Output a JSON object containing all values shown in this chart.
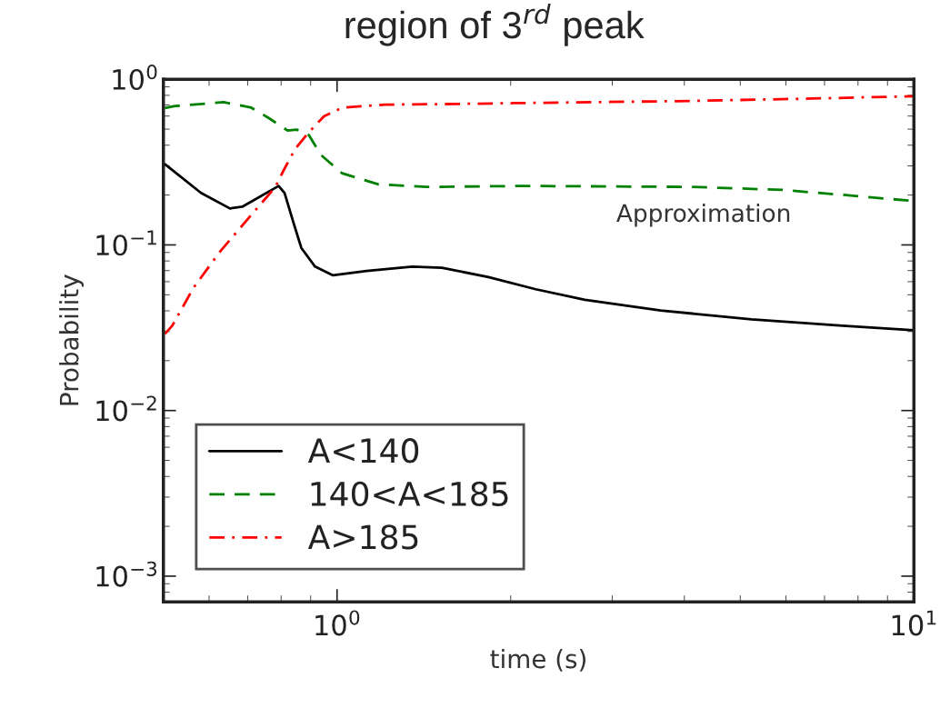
{
  "chart_data": {
    "type": "line",
    "title": "region of 3$^{rd}$ peak",
    "xlabel": "time (s)",
    "ylabel": "Probability",
    "log": "xy",
    "xlim": [
      0.5,
      10
    ],
    "ylim": [
      0.0007,
      1
    ],
    "xticks": [
      {
        "value": 1,
        "label": "10$^{0}$"
      },
      {
        "value": 10,
        "label": "10$^{1}$"
      }
    ],
    "yticks": [
      {
        "value": 0.001,
        "label": "10$^{−3}$"
      },
      {
        "value": 0.01,
        "label": "10$^{−2}$"
      },
      {
        "value": 0.1,
        "label": "10$^{−1}$"
      },
      {
        "value": 1,
        "label": "10$^{0}$"
      }
    ],
    "grid": false,
    "legend": "bottom left",
    "annotations": [
      "Approximation"
    ],
    "series": [
      {
        "name": "A<140",
        "color": "#000000",
        "line_style": "solid",
        "x": [
          0.503,
          0.581,
          0.652,
          0.685,
          0.792,
          0.811,
          0.841,
          0.867,
          0.916,
          0.984,
          1.125,
          1.35,
          1.52,
          1.83,
          2.21,
          2.69,
          3.64,
          5.23,
          7.52,
          10
        ],
        "values": [
          0.307,
          0.206,
          0.166,
          0.17,
          0.227,
          0.206,
          0.135,
          0.096,
          0.074,
          0.0655,
          0.0697,
          0.074,
          0.0727,
          0.064,
          0.054,
          0.0466,
          0.0402,
          0.0355,
          0.0325,
          0.0305
        ]
      },
      {
        "name": "140<A<185",
        "color": "#008000",
        "line_style": "dashed",
        "x": [
          0.503,
          0.524,
          0.636,
          0.71,
          0.763,
          0.821,
          0.851,
          0.894,
          0.938,
          1.02,
          1.18,
          1.43,
          2.13,
          4.11,
          5.9,
          8.0,
          10
        ],
        "values": [
          0.67,
          0.689,
          0.728,
          0.674,
          0.581,
          0.49,
          0.497,
          0.46,
          0.349,
          0.271,
          0.232,
          0.224,
          0.227,
          0.224,
          0.215,
          0.197,
          0.184
        ]
      },
      {
        "name": "A>185",
        "color": "#ff0000",
        "line_style": "dashdot",
        "x": [
          0.503,
          0.518,
          0.564,
          0.625,
          0.7,
          0.782,
          0.811,
          0.846,
          0.894,
          0.949,
          1.02,
          1.21,
          1.62,
          2.03,
          4.11,
          6.65,
          10
        ],
        "values": [
          0.029,
          0.0325,
          0.0552,
          0.09,
          0.143,
          0.224,
          0.289,
          0.38,
          0.48,
          0.598,
          0.674,
          0.703,
          0.71,
          0.718,
          0.74,
          0.765,
          0.79
        ]
      }
    ]
  }
}
